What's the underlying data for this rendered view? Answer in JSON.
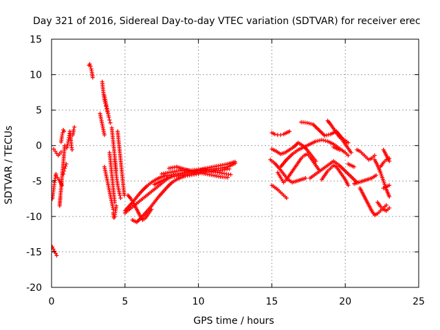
{
  "chart_data": {
    "type": "scatter",
    "title": "Day 321 of 2016, Sidereal Day-to-day VTEC variation (SDTVAR) for receiver erec",
    "xlabel": "GPS time / hours",
    "ylabel": "SDTVAR / TECUs",
    "xlim": [
      0,
      25
    ],
    "ylim": [
      -20,
      15
    ],
    "xticks": [
      0,
      5,
      10,
      15,
      20,
      25
    ],
    "yticks": [
      -20,
      -15,
      -10,
      -5,
      0,
      5,
      10,
      15
    ],
    "xtick_labels": [
      "0",
      "5",
      "10",
      "15",
      "20",
      "25"
    ],
    "ytick_labels": [
      "-20",
      "-15",
      "-10",
      "-5",
      "0",
      "5",
      "10",
      "15"
    ],
    "grid": true,
    "marker": "+",
    "color": "#ff0000",
    "series": [
      {
        "name": "s1",
        "x": [
          0.05,
          0.1,
          0.15,
          0.2,
          0.25,
          0.3
        ],
        "y": [
          -7.5,
          -6.8,
          -6.0,
          -5.2,
          -4.6,
          -4.0
        ]
      },
      {
        "name": "s2",
        "x": [
          0.05,
          0.12,
          0.2,
          0.28,
          0.35
        ],
        "y": [
          -14.3,
          -14.6,
          -14.9,
          -15.2,
          -15.5
        ]
      },
      {
        "name": "s3",
        "x": [
          0.15,
          0.25,
          0.35,
          0.45,
          0.55,
          0.65
        ],
        "y": [
          -0.5,
          -0.8,
          -1.1,
          -1.4,
          -1.2,
          -0.9
        ]
      },
      {
        "name": "s4",
        "x": [
          0.3,
          0.4,
          0.5,
          0.6,
          0.7
        ],
        "y": [
          -4.2,
          -4.5,
          -4.8,
          -5.2,
          -5.6
        ]
      },
      {
        "name": "s5",
        "x": [
          0.55,
          0.6,
          0.65,
          0.7,
          0.75,
          0.8,
          0.85,
          0.9
        ],
        "y": [
          -8.5,
          -7.2,
          -6.0,
          -4.8,
          -3.6,
          -2.4,
          -1.2,
          0.0
        ]
      },
      {
        "name": "s6",
        "x": [
          0.65,
          0.7,
          0.75,
          0.8,
          0.85
        ],
        "y": [
          0.5,
          1.2,
          1.8,
          2.2,
          2.0
        ]
      },
      {
        "name": "s7",
        "x": [
          0.8,
          0.85,
          0.9,
          0.95,
          1.0
        ],
        "y": [
          -4.0,
          -3.6,
          -3.2,
          -2.9,
          -2.6
        ]
      },
      {
        "name": "s8",
        "x": [
          1.05,
          1.1,
          1.15,
          1.2,
          1.25,
          1.3,
          1.35,
          1.4
        ],
        "y": [
          -0.3,
          0.2,
          0.8,
          1.4,
          2.0,
          1.2,
          0.0,
          -0.6
        ]
      },
      {
        "name": "s9",
        "x": [
          1.45,
          1.5,
          1.55
        ],
        "y": [
          1.5,
          2.2,
          2.6
        ]
      },
      {
        "name": "s10",
        "x": [
          2.55,
          2.6,
          2.65,
          2.7,
          2.75,
          2.8
        ],
        "y": [
          11.3,
          11.5,
          11.2,
          10.8,
          10.3,
          9.6
        ]
      },
      {
        "name": "s11",
        "x": [
          3.3,
          3.35,
          3.4,
          3.45,
          3.5,
          3.55,
          3.6
        ],
        "y": [
          4.5,
          4.0,
          3.5,
          3.0,
          2.5,
          2.0,
          1.5
        ]
      },
      {
        "name": "s12",
        "x": [
          3.45,
          3.5,
          3.55,
          3.6,
          3.65,
          3.7,
          3.75,
          3.8
        ],
        "y": [
          9.0,
          8.0,
          7.2,
          6.5,
          6.0,
          5.6,
          5.2,
          4.8
        ]
      },
      {
        "name": "s13",
        "x": [
          3.6,
          3.65,
          3.7,
          3.75,
          3.8,
          3.85,
          3.9,
          3.95,
          4.0
        ],
        "y": [
          7.0,
          6.5,
          6.0,
          5.5,
          5.0,
          4.5,
          4.0,
          3.6,
          3.2
        ]
      },
      {
        "name": "s14",
        "x": [
          3.6,
          3.7,
          3.8,
          3.9,
          4.0,
          4.1,
          4.2
        ],
        "y": [
          -3.0,
          -4.0,
          -5.0,
          -6.0,
          -7.0,
          -8.0,
          -9.0
        ]
      },
      {
        "name": "s15",
        "x": [
          3.95,
          4.0,
          4.05,
          4.1,
          4.15,
          4.2,
          4.25,
          4.3
        ],
        "y": [
          -1.0,
          -2.0,
          -3.0,
          -4.0,
          -5.0,
          -6.0,
          -7.0,
          -8.0
        ]
      },
      {
        "name": "s16",
        "x": [
          4.1,
          4.15,
          4.2,
          4.25,
          4.3,
          4.35,
          4.4
        ],
        "y": [
          2.5,
          1.5,
          0.5,
          -0.5,
          -1.5,
          -2.5,
          -3.5
        ]
      },
      {
        "name": "s17",
        "x": [
          4.3,
          4.35,
          4.4,
          4.45,
          4.5,
          4.55,
          4.6,
          4.65,
          4.7
        ],
        "y": [
          -2.0,
          -3.0,
          -4.0,
          -4.8,
          -5.5,
          -6.0,
          -6.5,
          -7.0,
          -7.4
        ]
      },
      {
        "name": "s18",
        "x": [
          4.5,
          4.55,
          4.6,
          4.65,
          4.7,
          4.75,
          4.8,
          4.85,
          4.9,
          4.95
        ],
        "y": [
          2.0,
          1.0,
          0.0,
          -1.0,
          -2.0,
          -3.0,
          -4.0,
          -5.0,
          -6.0,
          -7.0
        ]
      },
      {
        "name": "s19",
        "x": [
          4.2,
          4.25,
          4.3,
          4.35,
          4.4
        ],
        "y": [
          -9.5,
          -10.2,
          -10.0,
          -9.2,
          -8.5
        ]
      },
      {
        "name": "s20",
        "x": [
          5.0,
          5.3,
          5.6,
          5.9,
          6.2,
          6.5,
          6.8,
          7.1,
          7.4,
          7.7,
          8.0
        ],
        "y": [
          -9.5,
          -9.0,
          -8.5,
          -8.0,
          -7.5,
          -7.0,
          -6.5,
          -6.0,
          -5.5,
          -5.0,
          -4.5
        ]
      },
      {
        "name": "s21",
        "x": [
          5.2,
          5.4,
          5.6,
          5.8,
          6.0,
          6.2,
          6.4,
          6.6,
          6.8
        ],
        "y": [
          -7.0,
          -7.5,
          -8.2,
          -9.0,
          -9.8,
          -10.5,
          -10.2,
          -9.6,
          -9.0
        ]
      },
      {
        "name": "s22",
        "x": [
          5.5,
          5.8,
          6.1,
          6.4,
          6.7,
          7.0,
          7.3,
          7.6,
          7.9,
          8.2,
          8.5,
          8.8,
          9.1,
          9.4,
          9.7,
          10.0
        ],
        "y": [
          -10.5,
          -10.8,
          -10.2,
          -9.5,
          -8.8,
          -8.0,
          -7.2,
          -6.5,
          -5.8,
          -5.2,
          -4.8,
          -4.5,
          -4.3,
          -4.2,
          -4.1,
          -4.0
        ]
      },
      {
        "name": "s23",
        "x": [
          5.0,
          5.3,
          5.6,
          5.9,
          6.2,
          6.5,
          6.8,
          7.1,
          7.4,
          7.7,
          8.0,
          8.3,
          8.6,
          8.9,
          9.2,
          9.5,
          9.8,
          10.1,
          10.4,
          10.7,
          11.0,
          11.3,
          11.6,
          11.9,
          12.2
        ],
        "y": [
          -9.2,
          -8.5,
          -7.8,
          -7.0,
          -6.3,
          -5.7,
          -5.2,
          -4.8,
          -4.5,
          -4.3,
          -4.2,
          -4.1,
          -4.0,
          -3.9,
          -3.8,
          -3.7,
          -3.6,
          -3.5,
          -3.5,
          -3.6,
          -3.7,
          -3.8,
          -3.9,
          -4.0,
          -4.1
        ]
      },
      {
        "name": "s24",
        "x": [
          7.0,
          7.3,
          7.6,
          7.9,
          8.2,
          8.5,
          8.8,
          9.1,
          9.4,
          9.7,
          10.0,
          10.3,
          10.6,
          10.9,
          11.2,
          11.5,
          11.8,
          12.1
        ],
        "y": [
          -5.5,
          -5.2,
          -4.9,
          -4.6,
          -4.4,
          -4.3,
          -4.2,
          -4.1,
          -4.0,
          -3.9,
          -3.8,
          -3.7,
          -3.6,
          -3.6,
          -3.5,
          -3.5,
          -3.4,
          -3.3
        ]
      },
      {
        "name": "s25",
        "x": [
          7.5,
          8.0,
          8.5,
          9.0,
          9.5,
          10.0,
          10.5,
          11.0,
          11.5,
          12.0,
          12.5
        ],
        "y": [
          -4.0,
          -3.8,
          -3.6,
          -3.5,
          -3.5,
          -3.4,
          -3.4,
          -3.3,
          -3.2,
          -3.0,
          -2.5
        ]
      },
      {
        "name": "s26",
        "x": [
          8.0,
          8.5,
          9.0,
          9.5,
          10.0,
          10.5,
          11.0,
          11.5,
          12.0
        ],
        "y": [
          -3.2,
          -3.0,
          -3.3,
          -3.6,
          -3.8,
          -4.0,
          -4.2,
          -4.4,
          -4.5
        ]
      },
      {
        "name": "s27",
        "x": [
          10.0,
          10.5,
          11.0,
          11.5,
          12.0,
          12.5
        ],
        "y": [
          -3.5,
          -3.2,
          -3.0,
          -2.8,
          -2.6,
          -2.3
        ]
      },
      {
        "name": "s28",
        "x": [
          15.0,
          15.2,
          15.4,
          15.6,
          15.8,
          16.0,
          16.2
        ],
        "y": [
          1.8,
          1.6,
          1.5,
          1.5,
          1.6,
          1.8,
          2.0
        ]
      },
      {
        "name": "s29",
        "x": [
          14.9,
          15.2,
          15.5,
          15.8,
          16.1,
          16.4,
          16.7,
          17.0,
          17.3
        ],
        "y": [
          -2.0,
          -2.5,
          -3.2,
          -4.0,
          -4.8,
          -5.2,
          -5.0,
          -4.8,
          -4.6
        ]
      },
      {
        "name": "s30",
        "x": [
          15.0,
          15.3,
          15.6,
          15.9,
          16.2,
          16.5,
          16.8,
          17.1,
          17.4,
          17.7,
          18.0
        ],
        "y": [
          -0.5,
          -0.8,
          -1.2,
          -1.0,
          -0.6,
          -0.2,
          0.4,
          0.0,
          -0.6,
          -1.4,
          -2.2
        ]
      },
      {
        "name": "s31",
        "x": [
          15.0,
          15.2,
          15.4,
          15.6,
          15.8,
          16.0
        ],
        "y": [
          -5.6,
          -5.9,
          -6.2,
          -6.6,
          -7.0,
          -7.4
        ]
      },
      {
        "name": "s32",
        "x": [
          15.4,
          15.6,
          15.8,
          16.0,
          16.2,
          16.4,
          16.6,
          16.8,
          17.0,
          17.2,
          17.4,
          17.6,
          17.8,
          18.0,
          18.2
        ],
        "y": [
          -3.8,
          -4.5,
          -5.2,
          -4.8,
          -4.2,
          -3.6,
          -3.0,
          -2.4,
          -1.8,
          -1.4,
          -1.2,
          -1.6,
          -2.2,
          -2.8,
          -3.4
        ]
      },
      {
        "name": "s33",
        "x": [
          15.6,
          16.0,
          16.4,
          16.8,
          17.2,
          17.6,
          18.0,
          18.4,
          18.8,
          19.2,
          19.6,
          20.0,
          20.2
        ],
        "y": [
          -3.0,
          -2.0,
          -1.2,
          -0.6,
          -0.2,
          0.2,
          0.6,
          0.8,
          0.6,
          0.2,
          -0.4,
          -1.0,
          -1.4
        ]
      },
      {
        "name": "s34",
        "x": [
          17.0,
          17.4,
          17.8,
          18.2,
          18.6,
          19.0,
          19.4,
          19.8,
          20.2
        ],
        "y": [
          3.3,
          3.2,
          3.0,
          2.2,
          1.4,
          1.6,
          2.0,
          1.0,
          0.4
        ]
      },
      {
        "name": "s35",
        "x": [
          17.6,
          18.0,
          18.4,
          18.8,
          19.2,
          19.6,
          20.0,
          20.4,
          20.8
        ],
        "y": [
          -4.6,
          -4.0,
          -3.4,
          -2.8,
          -2.2,
          -2.8,
          -3.6,
          -4.4,
          -5.2
        ]
      },
      {
        "name": "s36",
        "x": [
          18.4,
          18.6,
          18.8,
          19.0,
          19.2,
          19.4,
          19.6,
          19.8,
          20.0,
          20.2
        ],
        "y": [
          -4.8,
          -4.2,
          -3.6,
          -3.2,
          -2.8,
          -3.0,
          -3.6,
          -4.2,
          -4.8,
          -5.6
        ]
      },
      {
        "name": "s37",
        "x": [
          18.8,
          19.0,
          19.2,
          19.4,
          19.6,
          19.8,
          20.0,
          20.2,
          20.4
        ],
        "y": [
          3.5,
          3.0,
          2.4,
          1.8,
          1.2,
          0.8,
          0.2,
          -0.4,
          -1.0
        ]
      },
      {
        "name": "s38",
        "x": [
          19.2,
          19.6
        ],
        "y": [
          -0.2,
          -0.6
        ]
      },
      {
        "name": "s39",
        "x": [
          20.2,
          20.6
        ],
        "y": [
          -2.6,
          -3.0
        ]
      },
      {
        "name": "s40",
        "x": [
          20.6,
          20.9,
          21.2,
          21.5,
          21.8,
          22.1
        ],
        "y": [
          -5.4,
          -5.2,
          -5.0,
          -4.8,
          -4.6,
          -4.2
        ]
      },
      {
        "name": "s41",
        "x": [
          20.8,
          21.0,
          21.2,
          21.4,
          21.6,
          21.8,
          22.0
        ],
        "y": [
          -0.6,
          -0.8,
          -1.2,
          -1.6,
          -2.0,
          -1.8,
          -1.4
        ]
      },
      {
        "name": "s42",
        "x": [
          21.0,
          21.2,
          21.4,
          21.6,
          21.8,
          22.0,
          22.2,
          22.4,
          22.6,
          22.8
        ],
        "y": [
          -6.0,
          -6.8,
          -7.6,
          -8.4,
          -9.2,
          -9.8,
          -9.6,
          -9.2,
          -8.8,
          -8.4
        ]
      },
      {
        "name": "s43",
        "x": [
          22.0,
          22.2,
          22.4,
          22.6,
          22.8,
          23.0
        ],
        "y": [
          -2.0,
          -2.8,
          -3.8,
          -5.0,
          -6.2,
          -7.2
        ]
      },
      {
        "name": "s44",
        "x": [
          22.2,
          22.4,
          22.6,
          22.8,
          23.0
        ],
        "y": [
          -8.0,
          -8.6,
          -9.0,
          -9.2,
          -8.8
        ]
      },
      {
        "name": "s45",
        "x": [
          22.4,
          22.6,
          22.8,
          23.0
        ],
        "y": [
          -3.0,
          -2.4,
          -2.0,
          -1.8
        ]
      },
      {
        "name": "s46",
        "x": [
          22.6,
          22.7,
          22.8,
          22.9,
          23.0
        ],
        "y": [
          -0.6,
          -1.0,
          -1.4,
          -1.8,
          -2.2
        ]
      },
      {
        "name": "s47",
        "x": [
          22.6,
          22.8,
          23.0
        ],
        "y": [
          -6.0,
          -5.8,
          -5.6
        ]
      }
    ]
  }
}
